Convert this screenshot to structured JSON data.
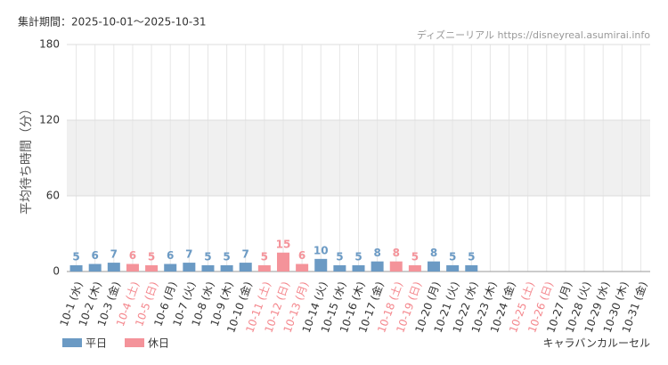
{
  "chart_data": {
    "type": "bar",
    "period": "集計期間：2025-10-01〜2025-10-31",
    "source": "ディズニーリアル https://disneyreal.asumirai.info",
    "y_label": "平均待ち時間（分）",
    "attraction": "キャラバンカルーセル",
    "categories": [
      "10-1 (水)",
      "10-2 (木)",
      "10-3 (金)",
      "10-4 (土)",
      "10-5 (日)",
      "10-6 (月)",
      "10-7 (火)",
      "10-8 (水)",
      "10-9 (木)",
      "10-10 (金)",
      "10-11 (土)",
      "10-12 (日)",
      "10-13 (月)",
      "10-14 (火)",
      "10-15 (水)",
      "10-16 (木)",
      "10-17 (金)",
      "10-18 (土)",
      "10-19 (日)",
      "10-20 (月)",
      "10-21 (火)",
      "10-22 (水)",
      "10-23 (木)",
      "10-24 (金)",
      "10-25 (土)",
      "10-26 (日)",
      "10-27 (月)",
      "10-28 (火)",
      "10-29 (水)",
      "10-30 (木)",
      "10-31 (金)"
    ],
    "category_colors": [
      "#333",
      "#333",
      "#333",
      "#f4868c",
      "#f4868c",
      "#333",
      "#333",
      "#333",
      "#333",
      "#333",
      "#f4868c",
      "#f4868c",
      "#f4868c",
      "#333",
      "#333",
      "#333",
      "#333",
      "#f4868c",
      "#f4868c",
      "#333",
      "#333",
      "#333",
      "#333",
      "#333",
      "#f4868c",
      "#f4868c",
      "#333",
      "#333",
      "#333",
      "#333",
      "#333"
    ],
    "series": [
      {
        "name": "平日",
        "color": "#6b9ac4",
        "values": [
          5,
          6,
          7,
          null,
          null,
          6,
          7,
          5,
          5,
          7,
          null,
          null,
          null,
          10,
          5,
          5,
          8,
          null,
          null,
          8,
          5,
          5,
          null,
          null,
          null,
          null,
          null,
          null,
          null,
          null,
          null
        ]
      },
      {
        "name": "休日",
        "color": "#f4939a",
        "values": [
          null,
          null,
          null,
          6,
          5,
          null,
          null,
          null,
          null,
          null,
          5,
          15,
          6,
          null,
          null,
          null,
          null,
          8,
          5,
          null,
          null,
          null,
          null,
          null,
          null,
          null,
          null,
          null,
          null,
          null,
          null
        ]
      }
    ],
    "ylim": [
      0,
      180
    ],
    "yticks": [
      0,
      60,
      120,
      180
    ],
    "shaded_range": [
      60,
      120
    ],
    "grid": true
  }
}
